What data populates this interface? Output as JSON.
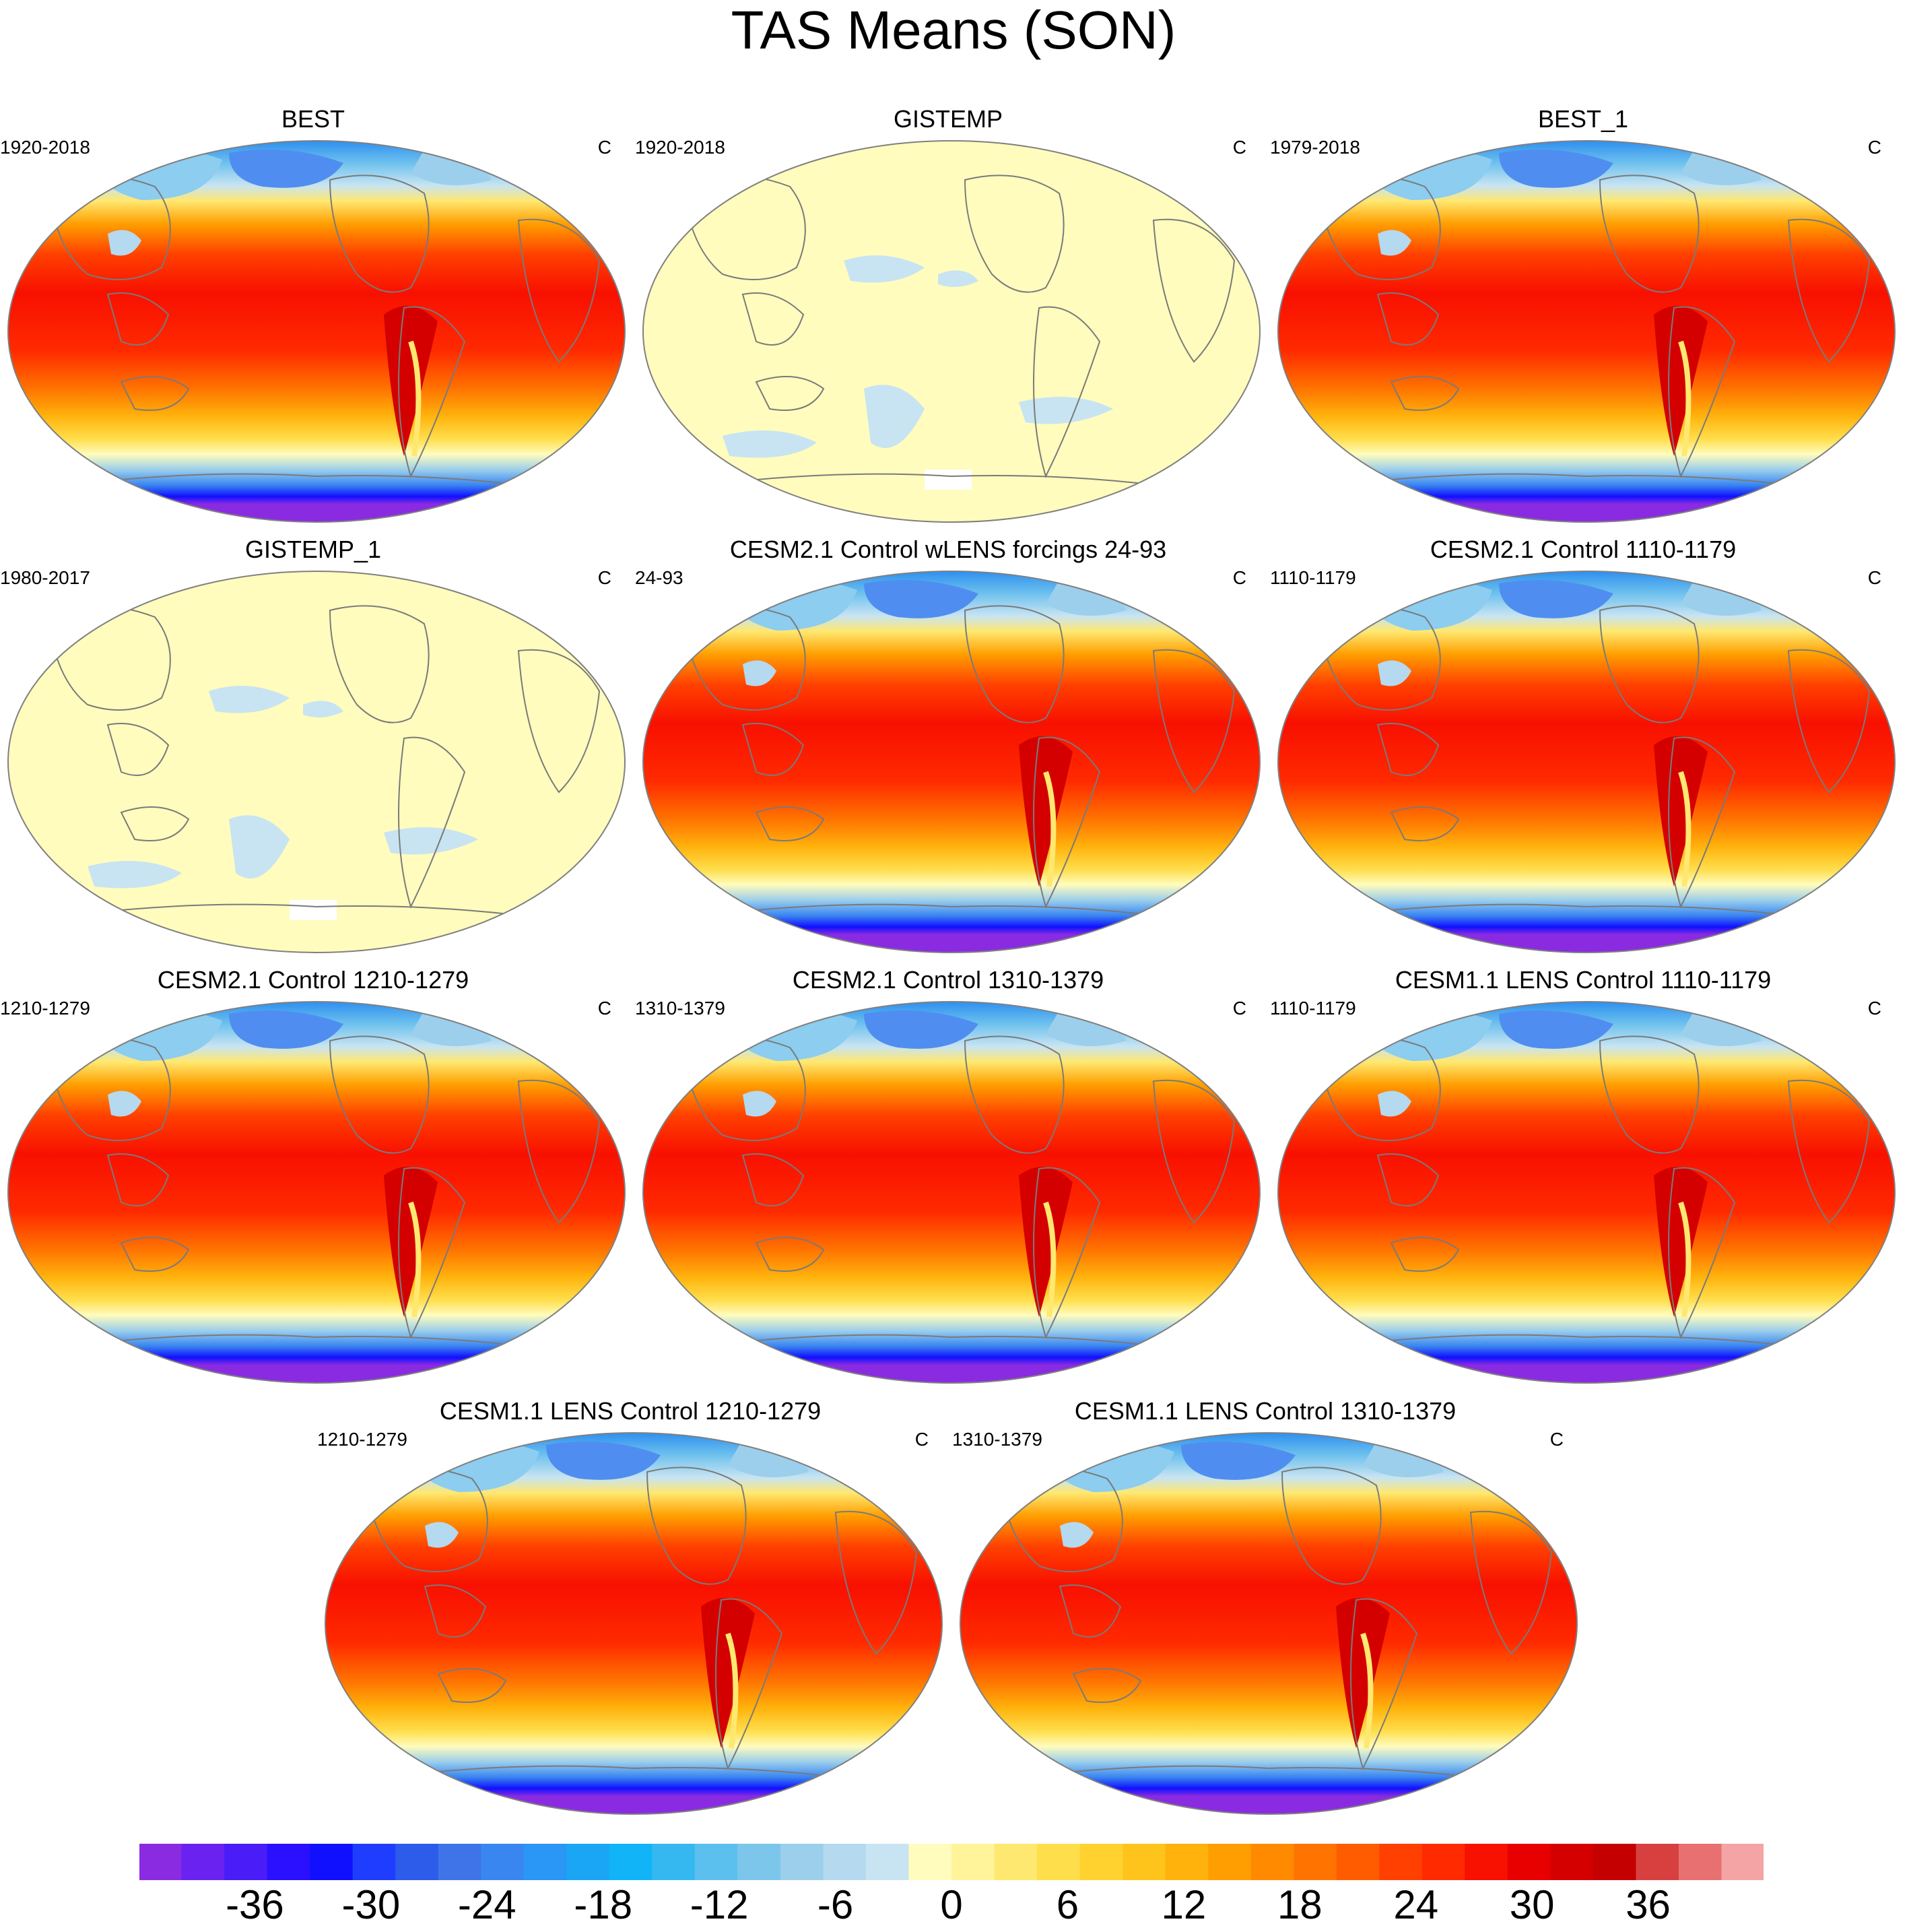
{
  "title": "TAS Means (SON)",
  "panels": [
    {
      "title": "BEST",
      "left": "1920-2018",
      "right": "C",
      "kind": "temperature"
    },
    {
      "title": "GISTEMP",
      "left": "1920-2018",
      "right": "C",
      "kind": "anomaly"
    },
    {
      "title": "BEST_1",
      "left": "1979-2018",
      "right": "C",
      "kind": "temperature"
    },
    {
      "title": "GISTEMP_1",
      "left": "1980-2017",
      "right": "C",
      "kind": "anomaly"
    },
    {
      "title": "CESM2.1 Control wLENS forcings 24-93",
      "left": "24-93",
      "right": "C",
      "kind": "temperature"
    },
    {
      "title": "CESM2.1 Control 1110-1179",
      "left": "1110-1179",
      "right": "C",
      "kind": "temperature"
    },
    {
      "title": "CESM2.1 Control 1210-1279",
      "left": "1210-1279",
      "right": "C",
      "kind": "temperature"
    },
    {
      "title": "CESM2.1 Control 1310-1379",
      "left": "1310-1379",
      "right": "C",
      "kind": "temperature"
    },
    {
      "title": "CESM1.1 LENS Control 1110-1179",
      "left": "1110-1179",
      "right": "C",
      "kind": "temperature"
    },
    {
      "title": "CESM1.1 LENS Control 1210-1279",
      "left": "1210-1279",
      "right": "C",
      "kind": "temperature"
    },
    {
      "title": "CESM1.1 LENS Control 1310-1379",
      "left": "1310-1379",
      "right": "C",
      "kind": "temperature"
    }
  ],
  "colorbar": {
    "min": -42,
    "max": 42,
    "step": 2,
    "labels": [
      "-36",
      "-30",
      "-24",
      "-18",
      "-12",
      "-6",
      "0",
      "6",
      "12",
      "18",
      "24",
      "30",
      "36"
    ],
    "colors": [
      "#8a2be2",
      "#6a22f0",
      "#4a1cf8",
      "#2a10ff",
      "#1010ff",
      "#1f3dff",
      "#2d5bea",
      "#3f73e8",
      "#3a86f0",
      "#2a96f5",
      "#1aa6f5",
      "#10b4f7",
      "#35b8f0",
      "#5cc0ee",
      "#7cc6ec",
      "#9ccfec",
      "#b5d9ee",
      "#c8e4f2",
      "#fffcbd",
      "#fff49a",
      "#ffe870",
      "#ffde4c",
      "#ffd230",
      "#ffc41c",
      "#ffb20c",
      "#ff9e00",
      "#ff8a00",
      "#ff7400",
      "#ff5c00",
      "#ff4000",
      "#ff2a00",
      "#f81000",
      "#e80000",
      "#d40000",
      "#c40000",
      "#d84040",
      "#e87070",
      "#f4a4a4"
    ]
  }
}
